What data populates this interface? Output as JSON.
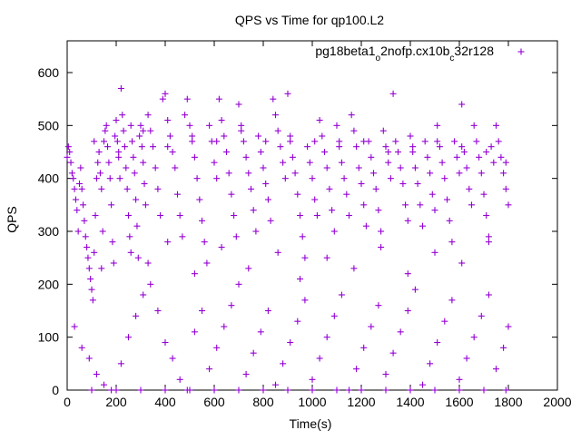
{
  "chart_data": {
    "type": "scatter",
    "title": "QPS vs Time for qp100.L2",
    "xlabel": "Time(s)",
    "ylabel": "QPS",
    "xlim": [
      0,
      2000
    ],
    "ylim": [
      0,
      660
    ],
    "x_ticks": [
      "0",
      "200",
      "400",
      "600",
      "800",
      "1000",
      "1200",
      "1400",
      "1600",
      "1800",
      "2000"
    ],
    "y_ticks": [
      "0",
      "100",
      "200",
      "300",
      "400",
      "500",
      "600"
    ],
    "grid": false,
    "legend_position": "top-right",
    "marker": "+",
    "series": [
      {
        "name": "pg18beta1_o2nofp.cx10b_c32r128",
        "legend_parts": [
          "pg18beta1",
          "o",
          "2nofp.cx10b",
          "c",
          "32r128"
        ],
        "color": "#9400d3",
        "points": [
          [
            0,
            440
          ],
          [
            5,
            460
          ],
          [
            10,
            450
          ],
          [
            15,
            430
          ],
          [
            20,
            410
          ],
          [
            25,
            400
          ],
          [
            30,
            380
          ],
          [
            35,
            360
          ],
          [
            40,
            340
          ],
          [
            45,
            300
          ],
          [
            50,
            390
          ],
          [
            55,
            420
          ],
          [
            60,
            380
          ],
          [
            65,
            350
          ],
          [
            70,
            320
          ],
          [
            75,
            290
          ],
          [
            80,
            270
          ],
          [
            85,
            250
          ],
          [
            90,
            230
          ],
          [
            95,
            210
          ],
          [
            100,
            190
          ],
          [
            105,
            170
          ],
          [
            110,
            260
          ],
          [
            115,
            330
          ],
          [
            120,
            400
          ],
          [
            125,
            430
          ],
          [
            130,
            450
          ],
          [
            135,
            410
          ],
          [
            140,
            380
          ],
          [
            145,
            300
          ],
          [
            150,
            470
          ],
          [
            155,
            490
          ],
          [
            160,
            500
          ],
          [
            165,
            460
          ],
          [
            170,
            430
          ],
          [
            175,
            400
          ],
          [
            180,
            350
          ],
          [
            185,
            280
          ],
          [
            190,
            240
          ],
          [
            195,
            480
          ],
          [
            200,
            510
          ],
          [
            205,
            470
          ],
          [
            210,
            440
          ],
          [
            215,
            400
          ],
          [
            220,
            570
          ],
          [
            225,
            520
          ],
          [
            230,
            490
          ],
          [
            235,
            460
          ],
          [
            240,
            420
          ],
          [
            245,
            380
          ],
          [
            250,
            330
          ],
          [
            255,
            290
          ],
          [
            260,
            500
          ],
          [
            265,
            470
          ],
          [
            270,
            440
          ],
          [
            275,
            410
          ],
          [
            280,
            360
          ],
          [
            285,
            310
          ],
          [
            290,
            250
          ],
          [
            295,
            480
          ],
          [
            300,
            500
          ],
          [
            305,
            460
          ],
          [
            310,
            430
          ],
          [
            315,
            390
          ],
          [
            320,
            350
          ],
          [
            330,
            520
          ],
          [
            340,
            490
          ],
          [
            350,
            460
          ],
          [
            360,
            420
          ],
          [
            370,
            380
          ],
          [
            380,
            330
          ],
          [
            390,
            550
          ],
          [
            400,
            560
          ],
          [
            410,
            510
          ],
          [
            420,
            480
          ],
          [
            430,
            450
          ],
          [
            440,
            420
          ],
          [
            450,
            370
          ],
          [
            460,
            330
          ],
          [
            470,
            290
          ],
          [
            480,
            520
          ],
          [
            490,
            550
          ],
          [
            500,
            500
          ],
          [
            510,
            470
          ],
          [
            520,
            440
          ],
          [
            530,
            400
          ],
          [
            540,
            360
          ],
          [
            550,
            320
          ],
          [
            560,
            280
          ],
          [
            570,
            240
          ],
          [
            580,
            500
          ],
          [
            590,
            470
          ],
          [
            600,
            430
          ],
          [
            610,
            400
          ],
          [
            620,
            550
          ],
          [
            630,
            510
          ],
          [
            640,
            480
          ],
          [
            650,
            450
          ],
          [
            660,
            410
          ],
          [
            670,
            370
          ],
          [
            680,
            330
          ],
          [
            690,
            290
          ],
          [
            700,
            540
          ],
          [
            710,
            500
          ],
          [
            720,
            470
          ],
          [
            730,
            440
          ],
          [
            740,
            410
          ],
          [
            750,
            380
          ],
          [
            760,
            340
          ],
          [
            770,
            300
          ],
          [
            780,
            480
          ],
          [
            790,
            450
          ],
          [
            800,
            420
          ],
          [
            810,
            390
          ],
          [
            820,
            360
          ],
          [
            830,
            320
          ],
          [
            840,
            550
          ],
          [
            850,
            520
          ],
          [
            860,
            490
          ],
          [
            870,
            460
          ],
          [
            880,
            430
          ],
          [
            890,
            400
          ],
          [
            900,
            560
          ],
          [
            910,
            470
          ],
          [
            920,
            440
          ],
          [
            930,
            410
          ],
          [
            940,
            370
          ],
          [
            950,
            330
          ],
          [
            960,
            290
          ],
          [
            970,
            250
          ],
          [
            980,
            460
          ],
          [
            990,
            430
          ],
          [
            1000,
            400
          ],
          [
            1010,
            360
          ],
          [
            1020,
            330
          ],
          [
            1030,
            510
          ],
          [
            1040,
            480
          ],
          [
            1050,
            450
          ],
          [
            1060,
            420
          ],
          [
            1070,
            380
          ],
          [
            1080,
            340
          ],
          [
            1090,
            300
          ],
          [
            1100,
            500
          ],
          [
            1110,
            470
          ],
          [
            1120,
            430
          ],
          [
            1130,
            400
          ],
          [
            1140,
            370
          ],
          [
            1150,
            330
          ],
          [
            1160,
            520
          ],
          [
            1170,
            490
          ],
          [
            1180,
            460
          ],
          [
            1190,
            420
          ],
          [
            1200,
            390
          ],
          [
            1210,
            350
          ],
          [
            1220,
            310
          ],
          [
            1230,
            470
          ],
          [
            1240,
            440
          ],
          [
            1250,
            410
          ],
          [
            1260,
            380
          ],
          [
            1270,
            340
          ],
          [
            1280,
            300
          ],
          [
            1290,
            490
          ],
          [
            1300,
            460
          ],
          [
            1310,
            430
          ],
          [
            1320,
            400
          ],
          [
            1330,
            560
          ],
          [
            1340,
            470
          ],
          [
            1350,
            450
          ],
          [
            1360,
            420
          ],
          [
            1370,
            390
          ],
          [
            1380,
            350
          ],
          [
            1390,
            320
          ],
          [
            1400,
            480
          ],
          [
            1410,
            450
          ],
          [
            1420,
            420
          ],
          [
            1430,
            390
          ],
          [
            1440,
            350
          ],
          [
            1450,
            310
          ],
          [
            1460,
            470
          ],
          [
            1470,
            440
          ],
          [
            1480,
            410
          ],
          [
            1490,
            370
          ],
          [
            1500,
            340
          ],
          [
            1510,
            500
          ],
          [
            1520,
            460
          ],
          [
            1530,
            430
          ],
          [
            1540,
            400
          ],
          [
            1550,
            360
          ],
          [
            1560,
            320
          ],
          [
            1570,
            280
          ],
          [
            1580,
            470
          ],
          [
            1590,
            440
          ],
          [
            1600,
            410
          ],
          [
            1610,
            540
          ],
          [
            1620,
            450
          ],
          [
            1630,
            420
          ],
          [
            1640,
            380
          ],
          [
            1650,
            350
          ],
          [
            1660,
            500
          ],
          [
            1670,
            470
          ],
          [
            1680,
            440
          ],
          [
            1690,
            410
          ],
          [
            1700,
            370
          ],
          [
            1710,
            330
          ],
          [
            1720,
            290
          ],
          [
            1730,
            460
          ],
          [
            1740,
            430
          ],
          [
            1750,
            500
          ],
          [
            1760,
            470
          ],
          [
            1770,
            440
          ],
          [
            1780,
            410
          ],
          [
            1790,
            380
          ],
          [
            1800,
            350
          ],
          [
            30,
            120
          ],
          [
            60,
            80
          ],
          [
            90,
            60
          ],
          [
            120,
            30
          ],
          [
            150,
            10
          ],
          [
            180,
            0
          ],
          [
            220,
            50
          ],
          [
            250,
            100
          ],
          [
            280,
            140
          ],
          [
            310,
            180
          ],
          [
            340,
            200
          ],
          [
            370,
            150
          ],
          [
            400,
            90
          ],
          [
            430,
            60
          ],
          [
            460,
            20
          ],
          [
            490,
            0
          ],
          [
            520,
            110
          ],
          [
            550,
            150
          ],
          [
            580,
            40
          ],
          [
            610,
            80
          ],
          [
            640,
            120
          ],
          [
            670,
            160
          ],
          [
            700,
            200
          ],
          [
            730,
            30
          ],
          [
            760,
            70
          ],
          [
            790,
            110
          ],
          [
            820,
            150
          ],
          [
            850,
            10
          ],
          [
            880,
            50
          ],
          [
            910,
            90
          ],
          [
            940,
            130
          ],
          [
            970,
            170
          ],
          [
            1000,
            20
          ],
          [
            1030,
            60
          ],
          [
            1060,
            100
          ],
          [
            1090,
            140
          ],
          [
            1120,
            180
          ],
          [
            1150,
            0
          ],
          [
            1180,
            40
          ],
          [
            1210,
            80
          ],
          [
            1240,
            120
          ],
          [
            1270,
            160
          ],
          [
            1300,
            30
          ],
          [
            1330,
            70
          ],
          [
            1360,
            110
          ],
          [
            1390,
            150
          ],
          [
            1420,
            190
          ],
          [
            1450,
            10
          ],
          [
            1480,
            50
          ],
          [
            1510,
            90
          ],
          [
            1540,
            130
          ],
          [
            1570,
            170
          ],
          [
            1600,
            20
          ],
          [
            1630,
            60
          ],
          [
            1660,
            100
          ],
          [
            1690,
            140
          ],
          [
            1720,
            180
          ],
          [
            1750,
            40
          ],
          [
            1780,
            80
          ],
          [
            1800,
            120
          ],
          [
            100,
            0
          ],
          [
            200,
            0
          ],
          [
            300,
            0
          ],
          [
            400,
            0
          ],
          [
            500,
            0
          ],
          [
            600,
            0
          ],
          [
            700,
            0
          ],
          [
            800,
            0
          ],
          [
            900,
            0
          ],
          [
            1000,
            0
          ],
          [
            1100,
            0
          ],
          [
            1200,
            0
          ],
          [
            1300,
            0
          ],
          [
            1400,
            0
          ],
          [
            1500,
            0
          ],
          [
            1600,
            0
          ],
          [
            1700,
            0
          ],
          [
            1790,
            0
          ],
          [
            140,
            230
          ],
          [
            260,
            260
          ],
          [
            330,
            240
          ],
          [
            410,
            280
          ],
          [
            520,
            220
          ],
          [
            630,
            270
          ],
          [
            740,
            230
          ],
          [
            860,
            260
          ],
          [
            950,
            210
          ],
          [
            1060,
            250
          ],
          [
            1170,
            230
          ],
          [
            1280,
            270
          ],
          [
            1390,
            220
          ],
          [
            1500,
            260
          ],
          [
            1610,
            240
          ],
          [
            1720,
            280
          ],
          [
            110,
            470
          ],
          [
            210,
            450
          ],
          [
            310,
            490
          ],
          [
            410,
            460
          ],
          [
            510,
            480
          ],
          [
            610,
            470
          ],
          [
            710,
            490
          ],
          [
            810,
            470
          ],
          [
            910,
            480
          ],
          [
            1010,
            470
          ],
          [
            1110,
            460
          ],
          [
            1210,
            470
          ],
          [
            1310,
            450
          ],
          [
            1410,
            460
          ],
          [
            1510,
            470
          ],
          [
            1610,
            460
          ],
          [
            1710,
            450
          ],
          [
            1790,
            430
          ]
        ]
      }
    ]
  }
}
